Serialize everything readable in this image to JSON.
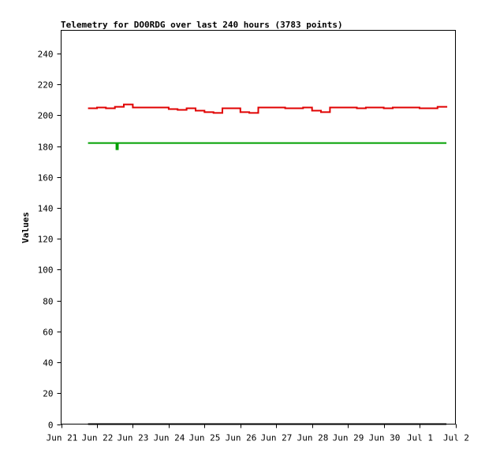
{
  "chart_data": {
    "type": "line",
    "title": "Telemetry for DO0RDG over last 240 hours (3783 points)",
    "xlabel": "",
    "ylabel": "Values",
    "ylim": [
      0,
      255
    ],
    "yticks": [
      0,
      20,
      40,
      60,
      80,
      100,
      120,
      140,
      160,
      180,
      200,
      220,
      240
    ],
    "xlim": [
      "2024-06-21",
      "2024-07-02"
    ],
    "xticks": [
      "2024-06-21",
      "2024-06-22",
      "2024-06-23",
      "2024-06-24",
      "2024-06-25",
      "2024-06-26",
      "2024-06-27",
      "2024-06-28",
      "2024-06-29",
      "2024-06-30",
      "2024-07-01",
      "2024-07-02"
    ],
    "xtick_labels": [
      "Jun 21",
      "Jun 22",
      "Jun 23",
      "Jun 24",
      "Jun 25",
      "Jun 26",
      "Jun 27",
      "Jun 28",
      "Jun 29",
      "Jun 30",
      "Jul 1",
      "Jul 2"
    ],
    "grid": false,
    "series": [
      {
        "color": "#e00000",
        "x": [
          "2024-06-21T18:00",
          "2024-06-22T00:00",
          "2024-06-22T06:00",
          "2024-06-22T12:00",
          "2024-06-22T18:00",
          "2024-06-23T00:00",
          "2024-06-23T06:00",
          "2024-06-23T12:00",
          "2024-06-23T18:00",
          "2024-06-24T00:00",
          "2024-06-24T06:00",
          "2024-06-24T12:00",
          "2024-06-24T18:00",
          "2024-06-25T00:00",
          "2024-06-25T06:00",
          "2024-06-25T12:00",
          "2024-06-25T18:00",
          "2024-06-26T00:00",
          "2024-06-26T06:00",
          "2024-06-26T12:00",
          "2024-06-26T18:00",
          "2024-06-27T00:00",
          "2024-06-27T06:00",
          "2024-06-27T12:00",
          "2024-06-27T18:00",
          "2024-06-28T00:00",
          "2024-06-28T06:00",
          "2024-06-28T12:00",
          "2024-06-28T18:00",
          "2024-06-29T00:00",
          "2024-06-29T06:00",
          "2024-06-29T12:00",
          "2024-06-29T18:00",
          "2024-06-30T00:00",
          "2024-06-30T06:00",
          "2024-06-30T12:00",
          "2024-06-30T18:00",
          "2024-07-01T00:00",
          "2024-07-01T06:00",
          "2024-07-01T12:00",
          "2024-07-01T18:00"
        ],
        "values": [
          204.5,
          205,
          204.5,
          205.5,
          207,
          205,
          205,
          205,
          205,
          204,
          203.5,
          204.5,
          203,
          202,
          201.5,
          204.5,
          204.5,
          202,
          201.5,
          205,
          205,
          205,
          204.5,
          204.5,
          205,
          203,
          202,
          205,
          205,
          205,
          204.5,
          205,
          205,
          204.5,
          205,
          205,
          205,
          204.5,
          204.5,
          205.5,
          206
        ]
      },
      {
        "color": "#00a000",
        "x": [
          "2024-06-21T18:00",
          "2024-06-22T12:00",
          "2024-06-22T13:00",
          "2024-06-22T14:00",
          "2024-07-01T18:00"
        ],
        "values": [
          182,
          182,
          178,
          182,
          182
        ]
      },
      {
        "color": "#000000",
        "x": [
          "2024-06-21T18:00",
          "2024-07-01T18:00"
        ],
        "values": [
          0,
          0
        ]
      }
    ]
  }
}
